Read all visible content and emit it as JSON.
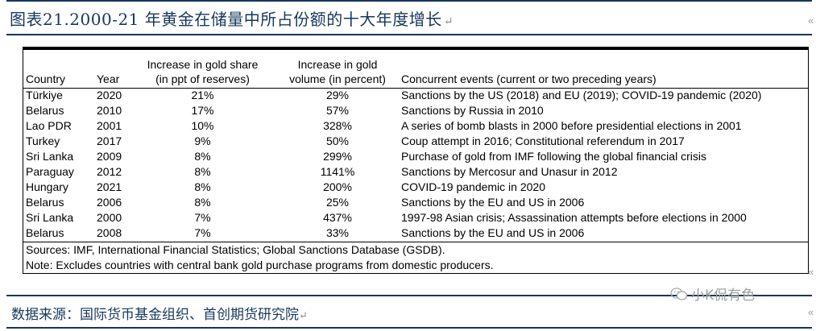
{
  "caption": "图表21.2000-21 年黄金在储量中所占份额的十大年度增长",
  "caption_mark": "↵",
  "table": {
    "headers": {
      "country": "Country",
      "year": "Year",
      "share_line1": "Increase in gold share",
      "share_line2": "(in ppt of reserves)",
      "volume_line1": "Increase in gold",
      "volume_line2": "volume (in percent)",
      "events": "Concurrent events (current or two preceding years)"
    },
    "rows": [
      {
        "country": "Türkiye",
        "year": "2020",
        "share": "21%",
        "volume": "29%",
        "events": "Sanctions by the US (2018) and EU (2019); COVID-19 pandemic (2020)"
      },
      {
        "country": "Belarus",
        "year": "2010",
        "share": "17%",
        "volume": "57%",
        "events": "Sanctions by Russia in 2010"
      },
      {
        "country": "Lao PDR",
        "year": "2001",
        "share": "10%",
        "volume": "328%",
        "events": "A series of bomb blasts in 2000 before presidential elections in 2001"
      },
      {
        "country": "Turkey",
        "year": "2017",
        "share": "9%",
        "volume": "50%",
        "events": "Coup attempt in 2016; Constitutional referendum in 2017"
      },
      {
        "country": "Sri Lanka",
        "year": "2009",
        "share": "8%",
        "volume": "299%",
        "events": "Purchase of gold from IMF following the global financial crisis"
      },
      {
        "country": "Paraguay",
        "year": "2012",
        "share": "8%",
        "volume": "1141%",
        "events": "Sanctions by Mercosur and Unasur in 2012"
      },
      {
        "country": "Hungary",
        "year": "2021",
        "share": "8%",
        "volume": "200%",
        "events": "COVID-19 pandemic in 2020"
      },
      {
        "country": "Belarus",
        "year": "2006",
        "share": "8%",
        "volume": "25%",
        "events": "Sanctions by the EU and US in 2006"
      },
      {
        "country": "Sri Lanka",
        "year": "2000",
        "share": "7%",
        "volume": "437%",
        "events": "1997-98 Asian crisis; Assassination attempts before elections in 2000"
      },
      {
        "country": "Belarus",
        "year": "2008",
        "share": "7%",
        "volume": "33%",
        "events": "Sanctions by the EU and US in 2006"
      }
    ],
    "sources": "Sources: IMF, International Financial Statistics; Global Sanctions Database (GSDB).",
    "note": "Note: Excludes countries with central bank gold purchase programs from domestic producers."
  },
  "source_line": "数据来源：国际货币基金组织、首创期货研究院",
  "source_mark": "↵",
  "watermark": "小K侃有色",
  "watermark_icon": "wechat-icon"
}
